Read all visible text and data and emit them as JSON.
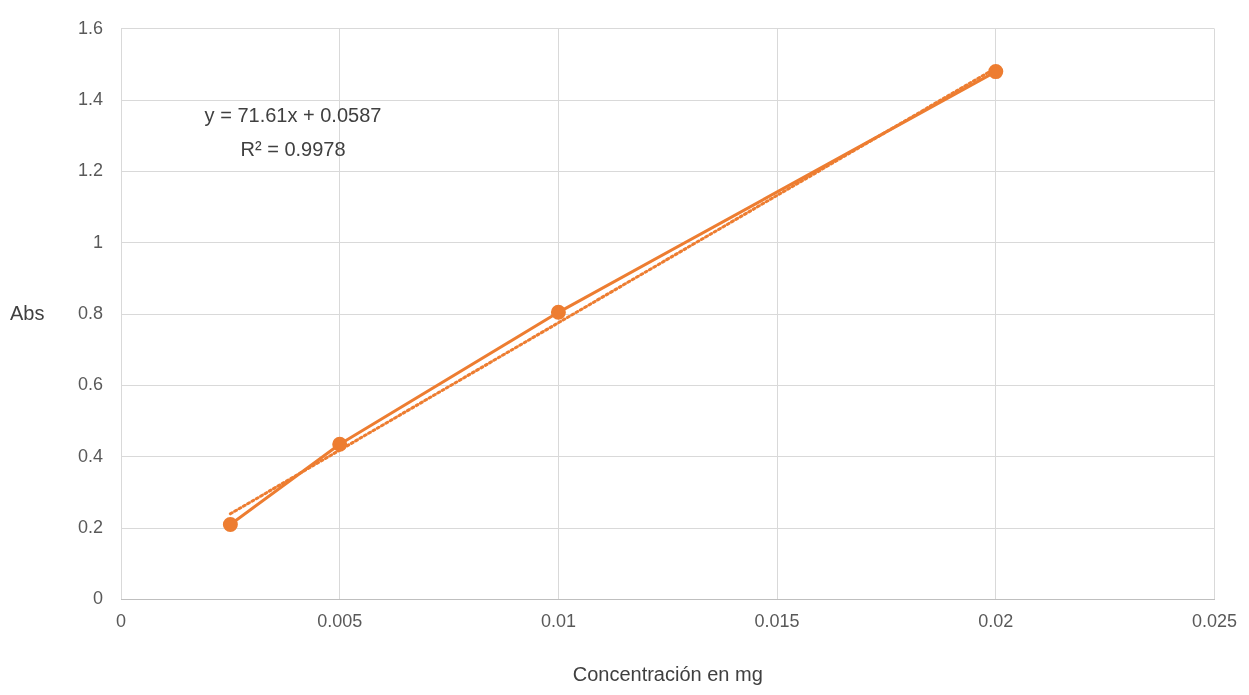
{
  "chart_data": {
    "type": "line",
    "xlabel": "Concentración en mg",
    "ylabel": "Abs",
    "x": [
      0.0025,
      0.005,
      0.01,
      0.02
    ],
    "series": [
      {
        "color": "#ed7d31",
        "values": [
          0.21,
          0.435,
          0.805,
          1.48
        ],
        "marker": "circle",
        "line_style": "solid"
      },
      {
        "color": "#ed7d31",
        "x": [
          0.0025,
          0.02
        ],
        "values": [
          0.24,
          1.49
        ],
        "marker": "none",
        "line_style": "dotted"
      }
    ],
    "xlim": [
      0,
      0.025
    ],
    "xticks": [
      0,
      0.005,
      0.01,
      0.015,
      0.02,
      0.025
    ],
    "ylim": [
      0,
      1.6
    ],
    "yticks": [
      0,
      0.2,
      0.4,
      0.6,
      0.8,
      1,
      1.2,
      1.4,
      1.6
    ],
    "grid": true,
    "legend": false,
    "annotations": [
      "y = 71.61x + 0.0587",
      "R² = 0.9978"
    ]
  }
}
